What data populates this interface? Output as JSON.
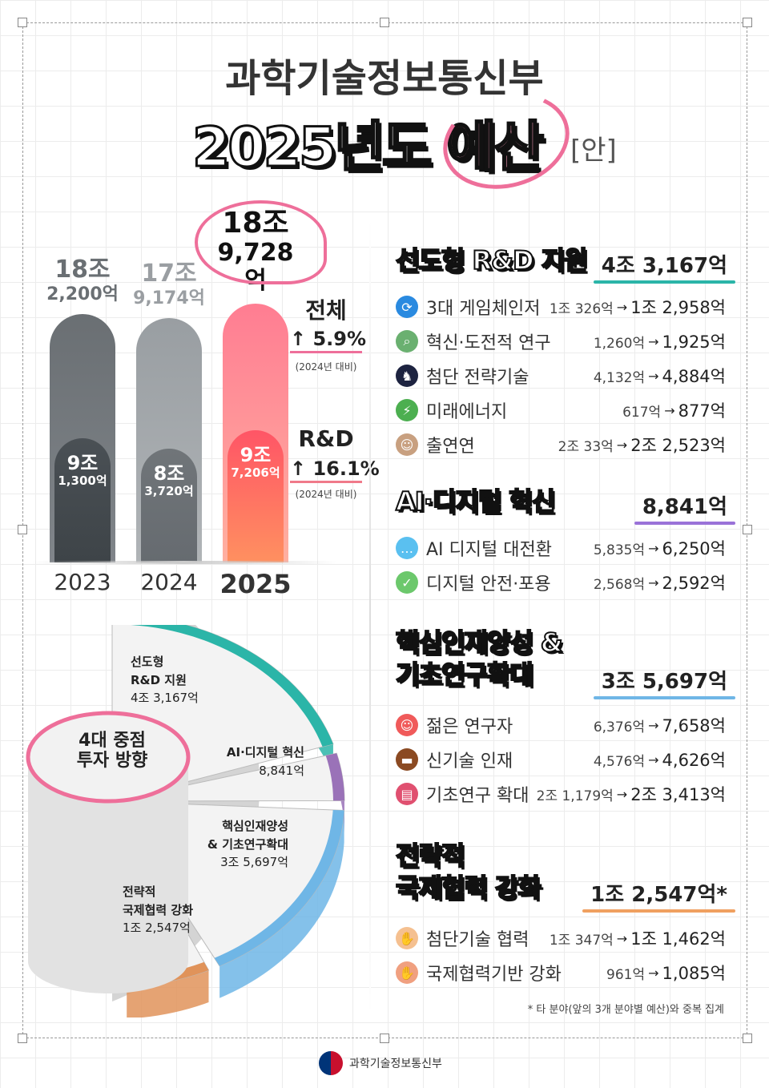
{
  "header": {
    "org": "과학기술정보통신부",
    "title_year": "2025년도",
    "title_word": "예산",
    "title_suffix": "[안]"
  },
  "chart_data": {
    "type": "bar",
    "categories": [
      "2023",
      "2024",
      "2025"
    ],
    "series": [
      {
        "name": "전체",
        "values": [
          18.22,
          17.9174,
          18.9728
        ],
        "labels": [
          [
            "18조",
            "2,200억"
          ],
          [
            "17조",
            "9,174억"
          ],
          [
            "18조",
            "9,728억"
          ]
        ]
      },
      {
        "name": "R&D",
        "values": [
          9.13,
          8.372,
          9.7206
        ],
        "labels": [
          [
            "9조",
            "1,300억"
          ],
          [
            "8조",
            "3,720억"
          ],
          [
            "9조",
            "7,206억"
          ]
        ]
      }
    ],
    "unit": "조원",
    "annotations": [
      {
        "label": "전체",
        "change": "5.9%",
        "note": "(2024년 대비)"
      },
      {
        "label": "R&D",
        "change": "16.1%",
        "note": "(2024년 대비)"
      }
    ],
    "colors": {
      "2023": "#6f7478",
      "2024": "#a3a7aa",
      "2025": "#ff7a8e",
      "accent": "#ee6f9a"
    }
  },
  "pie": {
    "center": [
      "4대 중점",
      "투자 방향"
    ],
    "segments": [
      {
        "name_lines": [
          "선도형",
          "R&D 지원"
        ],
        "value_text": "4조 3,167억",
        "value": 43167,
        "color": "#2bb5a8"
      },
      {
        "name_lines": [
          "AI·디지털 혁신"
        ],
        "value_text": "8,841억",
        "value": 8841,
        "color": "#9a72b8"
      },
      {
        "name_lines": [
          "핵심인재양성",
          "& 기초연구확대"
        ],
        "value_text": "3조 5,697억",
        "value": 35697,
        "color": "#6fb6e6"
      },
      {
        "name_lines": [
          "전략적",
          "국제협력 강화"
        ],
        "value_text": "1조 2,547억",
        "value": 12547,
        "color": "#e0935a"
      }
    ]
  },
  "sections": [
    {
      "title": [
        "선도형 R&D 지원"
      ],
      "total": "4조 3,167억",
      "color": "#2bb5a8",
      "items": [
        {
          "icon": "refresh-icon",
          "name": "3대 게임체인저",
          "from": "1조 326억",
          "to": "1조 2,958억"
        },
        {
          "icon": "magnifier-icon",
          "name": "혁신·도전적 연구",
          "from": "1,260억",
          "to": "1,925억"
        },
        {
          "icon": "chess-knight-icon",
          "name": "첨단 전략기술",
          "from": "4,132억",
          "to": "4,884억"
        },
        {
          "icon": "sprout-plug-icon",
          "name": "미래에너지",
          "from": "617억",
          "to": "877억"
        },
        {
          "icon": "researcher-icon",
          "name": "출연연",
          "from": "2조 33억",
          "to": "2조 2,523억"
        }
      ]
    },
    {
      "title": [
        "AI·디지털 혁신"
      ],
      "total": "8,841억",
      "color": "#9a72d8",
      "items": [
        {
          "icon": "chat-bubble-icon",
          "name": "AI 디지털 대전환",
          "from": "5,835억",
          "to": "6,250억"
        },
        {
          "icon": "shield-check-icon",
          "name": "디지털 안전·포용",
          "from": "2,568억",
          "to": "2,592억"
        }
      ]
    },
    {
      "title": [
        "핵심인재양성 &",
        "기초연구확대"
      ],
      "total": "3조 5,697억",
      "color": "#6fb6e6",
      "items": [
        {
          "icon": "young-person-icon",
          "name": "젊은 연구자",
          "from": "6,376억",
          "to": "7,658억"
        },
        {
          "icon": "briefcase-icon",
          "name": "신기술 인재",
          "from": "4,576억",
          "to": "4,626억"
        },
        {
          "icon": "books-icon",
          "name": "기초연구 확대",
          "from": "2조 1,179억",
          "to": "2조 3,413억"
        }
      ]
    },
    {
      "title": [
        "전략적",
        "국제협력 강화"
      ],
      "total": "1조 2,547억*",
      "color": "#f0a060",
      "items": [
        {
          "icon": "praying-hands-icon",
          "name": "첨단기술 협력",
          "from": "1조 347억",
          "to": "1조 1,462억"
        },
        {
          "icon": "handshake-icon",
          "name": "국제협력기반 강화",
          "from": "961억",
          "to": "1,085억"
        }
      ]
    }
  ],
  "footnote": "* 타 분야(앞의 3개 분야별 예산)와 중복 집계",
  "footer": {
    "logo_text": "과학기술정보통신부"
  },
  "arrow": "→"
}
